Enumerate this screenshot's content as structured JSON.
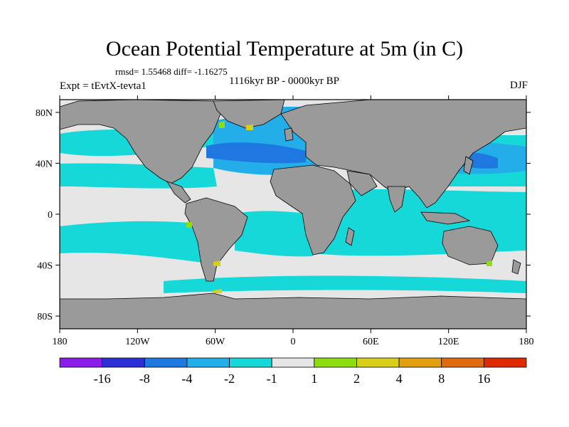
{
  "chart_data": {
    "type": "heatmap",
    "title": "Ocean Potential Temperature at 5m (in C)",
    "stats_text": "rmsd= 1.55468 diff= -1.16275",
    "experiment": "Expt = tEvtX-tevta1",
    "period": "1116kyr BP - 0000kyr BP",
    "season": "DJF",
    "x_range": [
      -180,
      180
    ],
    "y_range": [
      -90,
      90
    ],
    "x_ticks": [
      {
        "value": -180,
        "label": "180"
      },
      {
        "value": -120,
        "label": "120W"
      },
      {
        "value": -60,
        "label": "60W"
      },
      {
        "value": 0,
        "label": "0"
      },
      {
        "value": 60,
        "label": "60E"
      },
      {
        "value": 120,
        "label": "120E"
      },
      {
        "value": 180,
        "label": "180"
      }
    ],
    "y_ticks": [
      {
        "value": 80,
        "label": "80N"
      },
      {
        "value": 40,
        "label": "40N"
      },
      {
        "value": 0,
        "label": "0"
      },
      {
        "value": -40,
        "label": "40S"
      },
      {
        "value": -80,
        "label": "80S"
      }
    ],
    "colorbar": {
      "levels": [
        -16,
        -8,
        -4,
        -2,
        -1,
        1,
        2,
        4,
        8,
        16
      ],
      "labels": [
        "-16",
        "-8",
        "-4",
        "-2",
        "-1",
        "1",
        "2",
        "4",
        "8",
        "16"
      ],
      "colors": [
        "#8a1ee8",
        "#2d2fd6",
        "#1f78e0",
        "#23aee9",
        "#17d8d8",
        "#e6e6e6",
        "#8fdc10",
        "#d8cf1a",
        "#e2a010",
        "#e06a10",
        "#df2a00"
      ]
    },
    "colors": {
      "ocean_default": "#e6e6e6",
      "land": "#9a9a9a",
      "coast": "#000000"
    },
    "regions": [
      {
        "name": "north-pacific",
        "level": "-1 to -2",
        "lon": [
          150,
          235
        ],
        "lat": [
          35,
          55
        ]
      },
      {
        "name": "north-atlantic",
        "level": "-4 to -8",
        "lon": [
          -75,
          -10
        ],
        "lat": [
          30,
          55
        ]
      },
      {
        "name": "north-atlantic-band",
        "level": "-2 to -4",
        "lon": [
          -60,
          10
        ],
        "lat": [
          20,
          65
        ]
      },
      {
        "name": "kuroshio",
        "level": "-4 to -8",
        "lon": [
          125,
          160
        ],
        "lat": [
          25,
          45
        ]
      },
      {
        "name": "tropical-indian-pacific",
        "level": "-1 to -2",
        "lon": [
          40,
          200
        ],
        "lat": [
          -35,
          25
        ]
      },
      {
        "name": "tropical-atlantic",
        "level": "-1 to -2",
        "lon": [
          -60,
          20
        ],
        "lat": [
          -40,
          20
        ]
      },
      {
        "name": "southern-ocean-band",
        "level": "-1 to -2",
        "lon": [
          -180,
          180
        ],
        "lat": [
          -60,
          -45
        ]
      }
    ]
  }
}
